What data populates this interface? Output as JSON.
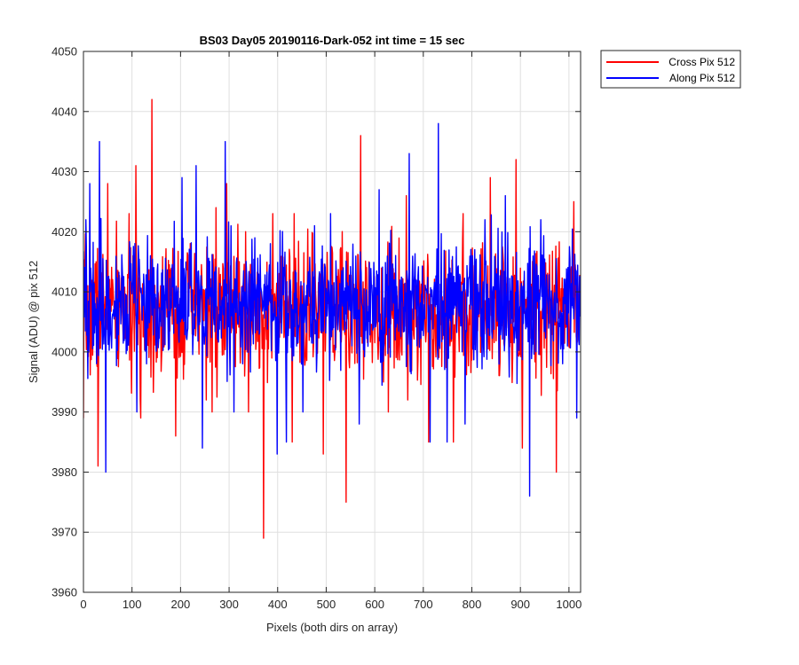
{
  "chart_data": {
    "type": "line",
    "title": "BS03 Day05 20190116-Dark-052 int time = 15 sec",
    "xlabel": "Pixels (both dirs on array)",
    "ylabel": "Signal (ADU) @ pix 512",
    "xlim": [
      0,
      1024
    ],
    "ylim": [
      3960,
      4050
    ],
    "xticks": [
      0,
      100,
      200,
      300,
      400,
      500,
      600,
      700,
      800,
      900,
      1000
    ],
    "yticks": [
      3960,
      3970,
      3980,
      3990,
      4000,
      4010,
      4020,
      4030,
      4040,
      4050
    ],
    "grid": true,
    "legend_position": "outside-top-right",
    "colors": {
      "background": "#ffffff",
      "axes": "#262626",
      "grid": "#dfdfdf"
    },
    "series": [
      {
        "name": "Cross Pix 512",
        "color": "#ff0000",
        "baseline": 4007,
        "noise_sd": 5.5,
        "seed": 7,
        "peaks": [
          {
            "x": 0,
            "y": 3989
          },
          {
            "x": 30,
            "y": 3981
          },
          {
            "x": 50,
            "y": 4028
          },
          {
            "x": 108,
            "y": 4031
          },
          {
            "x": 118,
            "y": 3989
          },
          {
            "x": 141,
            "y": 4042
          },
          {
            "x": 190,
            "y": 3986
          },
          {
            "x": 265,
            "y": 3990
          },
          {
            "x": 273,
            "y": 4024
          },
          {
            "x": 295,
            "y": 4028
          },
          {
            "x": 340,
            "y": 3990
          },
          {
            "x": 371,
            "y": 3969
          },
          {
            "x": 430,
            "y": 3985
          },
          {
            "x": 494,
            "y": 3983
          },
          {
            "x": 541,
            "y": 3975
          },
          {
            "x": 571,
            "y": 4036
          },
          {
            "x": 628,
            "y": 3990
          },
          {
            "x": 665,
            "y": 4026
          },
          {
            "x": 711,
            "y": 3985
          },
          {
            "x": 762,
            "y": 3985
          },
          {
            "x": 838,
            "y": 4029
          },
          {
            "x": 891,
            "y": 4032
          },
          {
            "x": 904,
            "y": 3984
          },
          {
            "x": 974,
            "y": 3980
          },
          {
            "x": 1010,
            "y": 4025
          }
        ]
      },
      {
        "name": "Along Pix 512",
        "color": "#0000ff",
        "baseline": 4008,
        "noise_sd": 5.2,
        "seed": 19,
        "peaks": [
          {
            "x": 5,
            "y": 4022
          },
          {
            "x": 13,
            "y": 4028
          },
          {
            "x": 33,
            "y": 4035
          },
          {
            "x": 46,
            "y": 3980
          },
          {
            "x": 110,
            "y": 3990
          },
          {
            "x": 203,
            "y": 4029
          },
          {
            "x": 232,
            "y": 4031
          },
          {
            "x": 245,
            "y": 3984
          },
          {
            "x": 292,
            "y": 4035
          },
          {
            "x": 310,
            "y": 3990
          },
          {
            "x": 399,
            "y": 3983
          },
          {
            "x": 418,
            "y": 3985
          },
          {
            "x": 452,
            "y": 3990
          },
          {
            "x": 476,
            "y": 4021
          },
          {
            "x": 568,
            "y": 3988
          },
          {
            "x": 609,
            "y": 4027
          },
          {
            "x": 671,
            "y": 4033
          },
          {
            "x": 714,
            "y": 3985
          },
          {
            "x": 731,
            "y": 4038
          },
          {
            "x": 749,
            "y": 3985
          },
          {
            "x": 786,
            "y": 3988
          },
          {
            "x": 827,
            "y": 4022
          },
          {
            "x": 869,
            "y": 4026
          },
          {
            "x": 919,
            "y": 3976
          },
          {
            "x": 942,
            "y": 4022
          },
          {
            "x": 1016,
            "y": 3989
          }
        ]
      }
    ]
  }
}
